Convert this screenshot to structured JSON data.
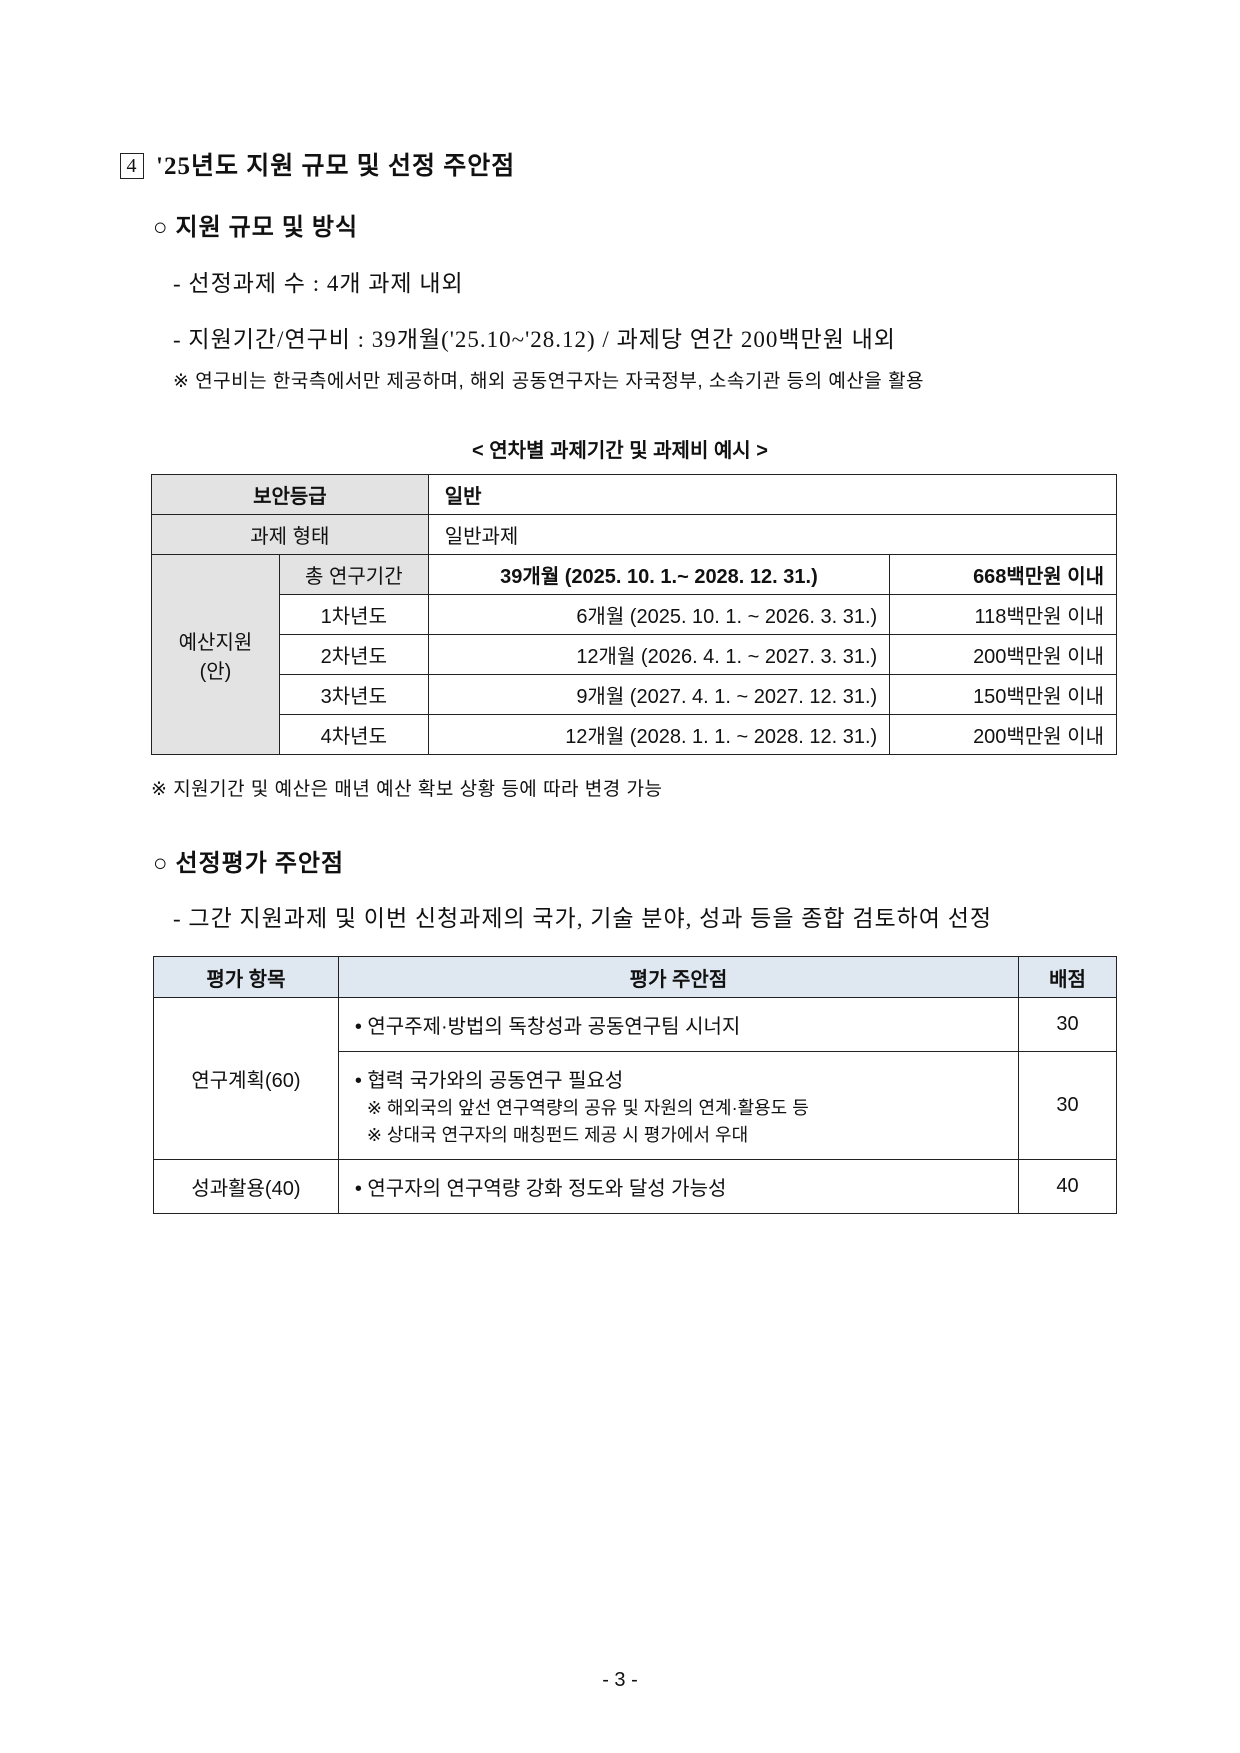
{
  "section": {
    "number": "4",
    "title": "'25년도 지원 규모 및 선정 주안점"
  },
  "support": {
    "heading": "○ 지원 규모 및 방식",
    "items": [
      "- 선정과제 수 : 4개 과제 내외",
      "- 지원기간/연구비 : 39개월('25.10~'28.12) / 과제당 연간 200백만원 내외"
    ],
    "note": "※ 연구비는 한국측에서만 제공하며, 해외 공동연구자는 자국정부, 소속기관 등의 예산을 활용"
  },
  "budget_table": {
    "caption": "< 연차별 과제기간 및 과제비 예시 >",
    "security_label": "보안등급",
    "security_value": "일반",
    "type_label": "과제 형태",
    "type_value": "일반과제",
    "budget_label": "예산지원",
    "budget_label2": "(안)",
    "rows": [
      {
        "year": "총 연구기간",
        "period": "39개월 (2025.  10. 1.~ 2028. 12. 31.)",
        "amount": "668백만원 이내"
      },
      {
        "year": "1차년도",
        "period": "6개월 (2025. 10. 1. ~ 2026.  3. 31.)",
        "amount": "118백만원 이내"
      },
      {
        "year": "2차년도",
        "period": "12개월 (2026.  4. 1. ~ 2027.  3. 31.)",
        "amount": "200백만원 이내"
      },
      {
        "year": "3차년도",
        "period": "9개월 (2027.  4. 1. ~ 2027. 12. 31.)",
        "amount": "150백만원 이내"
      },
      {
        "year": "4차년도",
        "period": "12개월 (2028.  1. 1. ~ 2028. 12. 31.)",
        "amount": "200백만원 이내"
      }
    ],
    "note": "※ 지원기간 및 예산은 매년 예산 확보 상황 등에 따라 변경 가능"
  },
  "evaluation": {
    "heading": "○ 선정평가 주안점",
    "item": "- 그간 지원과제 및 이번 신청과제의 국가, 기술 분야, 성과 등을 종합 검토하여 선정",
    "headers": [
      "평가 항목",
      "평가 주안점",
      "배점"
    ],
    "plan_label": "연구계획(60)",
    "plan_1": "• 연구주제·방법의 독창성과 공동연구팀 시너지",
    "plan_1_score": "30",
    "plan_2": "• 협력 국가와의 공동연구 필요성",
    "plan_2_note1": "※ 해외국의 앞선 연구역량의 공유 및 자원의 연계·활용도 등",
    "plan_2_note2": "※ 상대국 연구자의 매칭펀드 제공 시 평가에서 우대",
    "plan_2_score": "30",
    "result_label": "성과활용(40)",
    "result_1": "• 연구자의 연구역량 강화 정도와 달성 가능성",
    "result_1_score": "40"
  },
  "page_number": "- 3 -"
}
